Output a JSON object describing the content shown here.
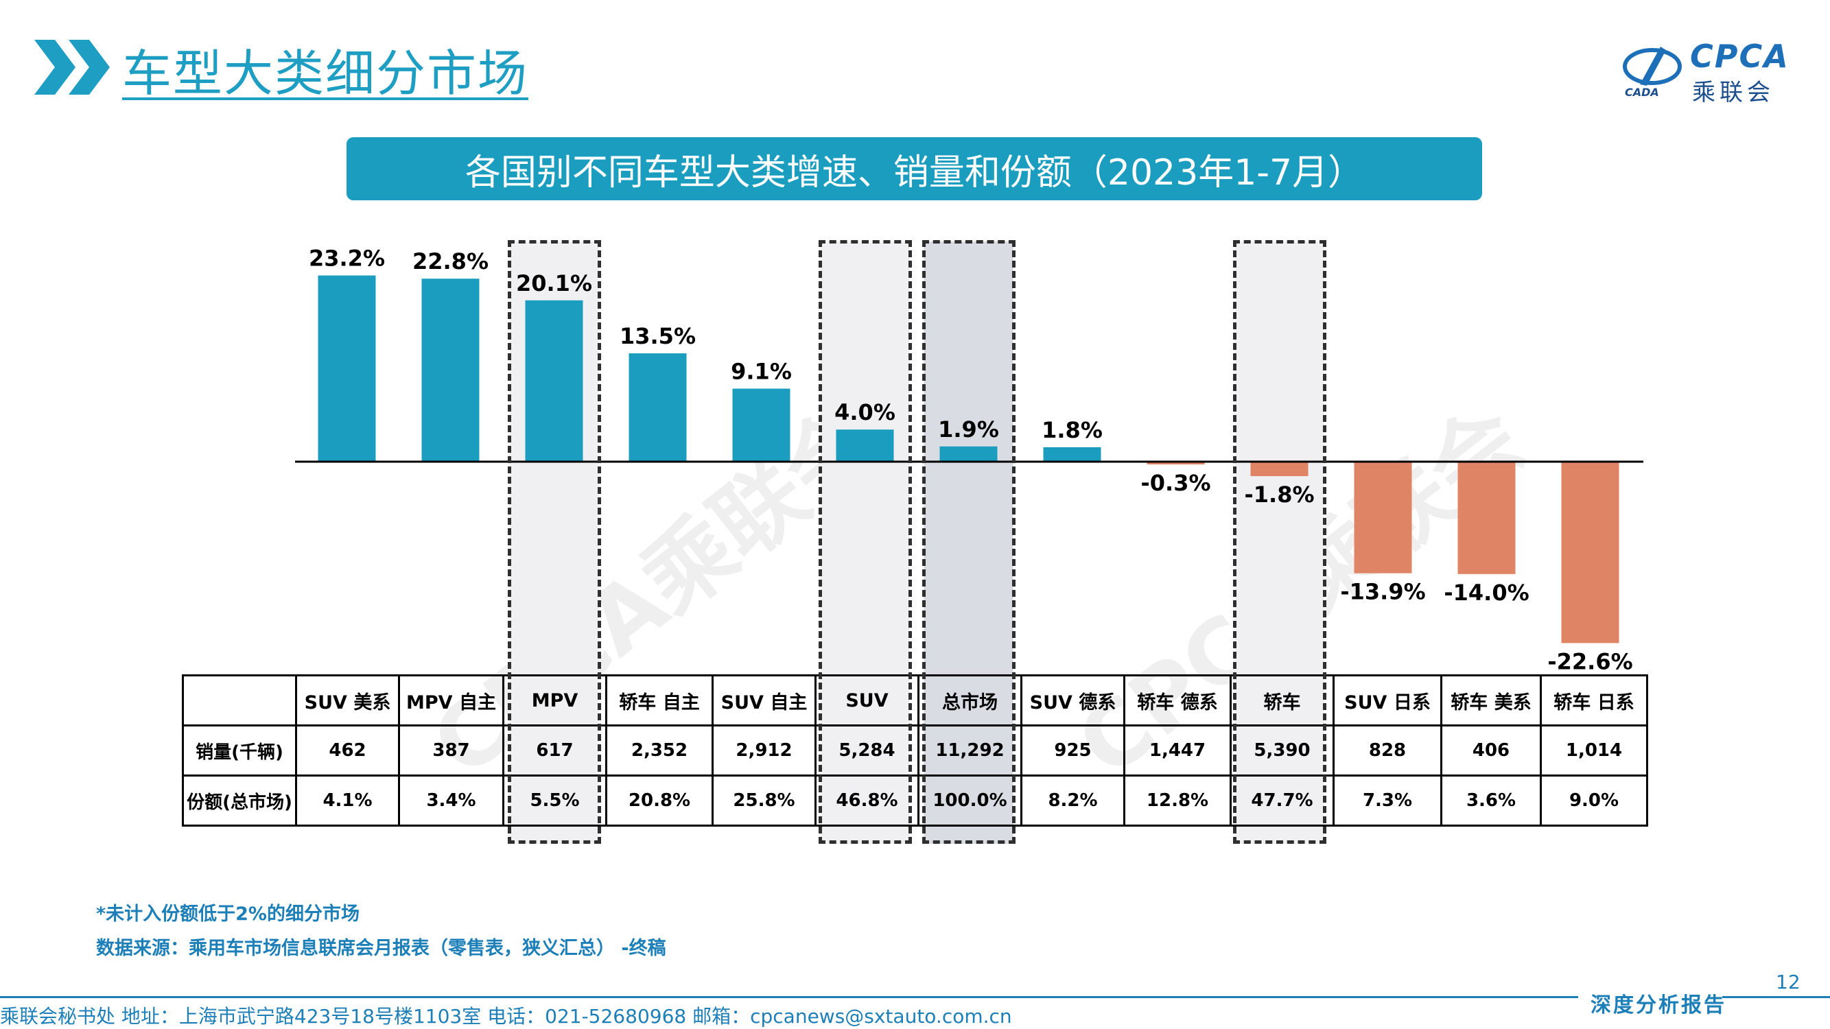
{
  "header": {
    "title": "车型大类细分市场",
    "logo_text": "CPCA",
    "logo_sub": "乘联会",
    "logo_cada": "CADA"
  },
  "subtitle": "各国别不同车型大类增速、销量和份额（2023年1-7月）",
  "colors": {
    "positive": "#1b9dbf",
    "negative": "#e08466",
    "accent": "#1d7fb8",
    "highlight_bg": "#d9dce3"
  },
  "chart_data": {
    "type": "bar",
    "categories": [
      "SUV 美系",
      "MPV 自主",
      "MPV",
      "轿车 自主",
      "SUV 自主",
      "SUV",
      "总市场",
      "SUV 德系",
      "轿车 德系",
      "轿车",
      "SUV 日系",
      "轿车 美系",
      "轿车 日系"
    ],
    "values": [
      23.2,
      22.8,
      20.1,
      13.5,
      9.1,
      4.0,
      1.9,
      1.8,
      -0.3,
      -1.8,
      -13.9,
      -14.0,
      -22.6
    ],
    "value_labels": [
      "23.2%",
      "22.8%",
      "20.1%",
      "13.5%",
      "9.1%",
      "4.0%",
      "1.9%",
      "1.8%",
      "-0.3%",
      "-1.8%",
      "-13.9%",
      "-14.0%",
      "-22.6%"
    ],
    "unit": "%",
    "ylim": [
      -24,
      26
    ],
    "highlighted": [
      "MPV",
      "SUV",
      "总市场",
      "轿车"
    ]
  },
  "table": {
    "rows": [
      {
        "label": "销量(千辆)",
        "values": [
          "462",
          "387",
          "617",
          "2,352",
          "2,912",
          "5,284",
          "11,292",
          "925",
          "1,447",
          "5,390",
          "828",
          "406",
          "1,014"
        ]
      },
      {
        "label": "份额(总市场)",
        "values": [
          "4.1%",
          "3.4%",
          "5.5%",
          "20.8%",
          "25.8%",
          "46.8%",
          "100.0%",
          "8.2%",
          "12.8%",
          "47.7%",
          "7.3%",
          "3.6%",
          "9.0%"
        ]
      }
    ]
  },
  "notes": {
    "note1": "*未计入份额低于2%的细分市场",
    "note2": "数据来源：乘用车市场信息联席会月报表（零售表，狭义汇总） -终稿"
  },
  "footer": {
    "text": "乘联会秘书处   地址：上海市武宁路423号18号楼1103室   电话：021-52680968   邮箱：cpcanews@sxtauto.com.cn",
    "report_tag": "深度分析报告",
    "page_number": "12"
  },
  "watermark": "CPCA乘联会"
}
